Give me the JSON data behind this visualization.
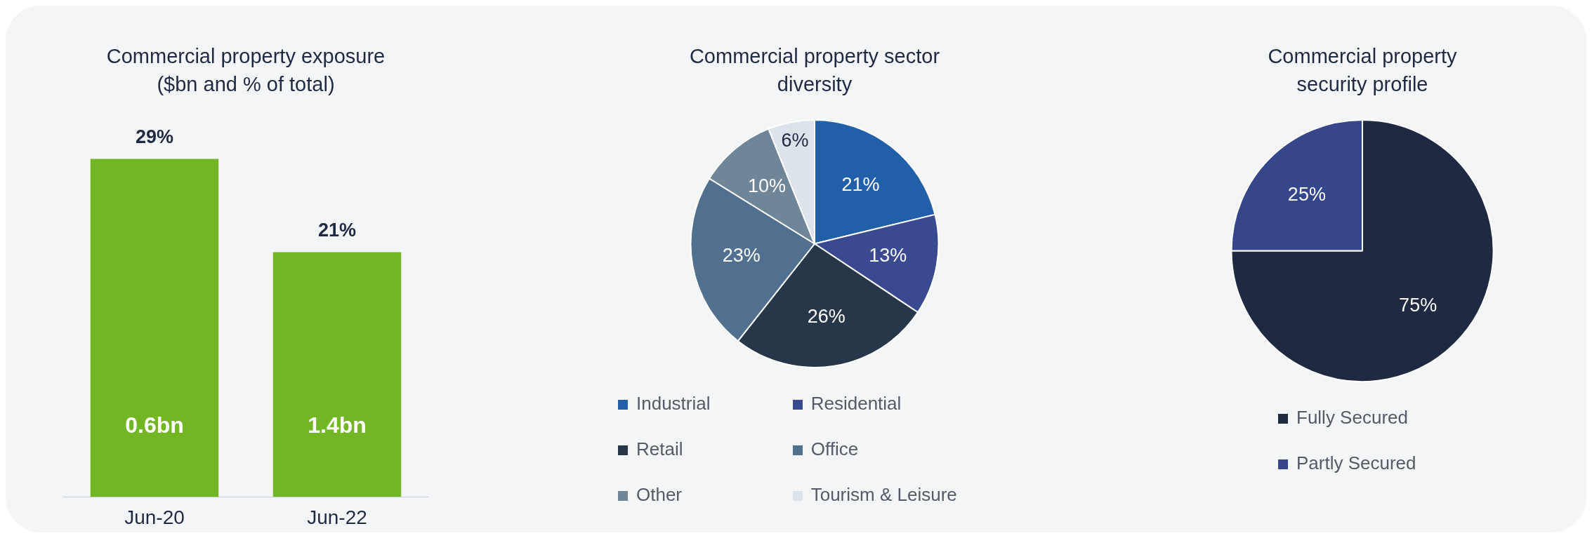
{
  "chart_data": [
    {
      "type": "bar",
      "title": "Commercial property exposure ($bn and % of total)",
      "categories": [
        "Jun-20",
        "Jun-22"
      ],
      "values": [
        29,
        21
      ],
      "color": "#72b626",
      "value_labels": [
        "29%",
        "21%"
      ],
      "annotations": [
        "0.6bn",
        "1.4bn"
      ],
      "grid": false,
      "legend": false
    },
    {
      "type": "pie",
      "title": "Commercial property sector diversity",
      "categories": [
        "Industrial",
        "Residential",
        "Retail",
        "Office",
        "Other",
        "Tourism & Leisure"
      ],
      "values": [
        21,
        13,
        26,
        23,
        10,
        6
      ],
      "colors": [
        "#2160a8",
        "#3a4a90",
        "#27374a",
        "#51708f",
        "#6f8699",
        "#dde3ea"
      ],
      "value_labels": [
        "21%",
        "13%",
        "26%",
        "23%",
        "10%",
        "6%"
      ],
      "legend": "bottom"
    },
    {
      "type": "pie",
      "title": "Commercial property security profile",
      "categories": [
        "Fully Secured",
        "Partly Secured"
      ],
      "values": [
        75,
        25
      ],
      "colors": [
        "#1f2942",
        "#35468a"
      ],
      "value_labels": [
        "75%",
        "25%"
      ],
      "legend": "bottom"
    }
  ]
}
